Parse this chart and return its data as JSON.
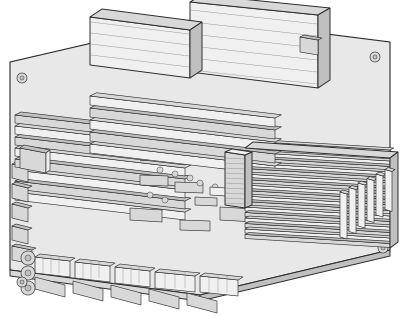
{
  "background_color": "#ffffff",
  "line_color": "#2a2a2a",
  "fill_board": "#e8e8e8",
  "fill_light": "#f0f0f0",
  "fill_medium": "#d8d8d8",
  "fill_dark": "#c0c0c0",
  "fill_darker": "#a8a8a8",
  "figsize": [
    4.04,
    3.16
  ],
  "dpi": 100,
  "lw_main": 0.7,
  "lw_detail": 0.45,
  "lw_thin": 0.3
}
